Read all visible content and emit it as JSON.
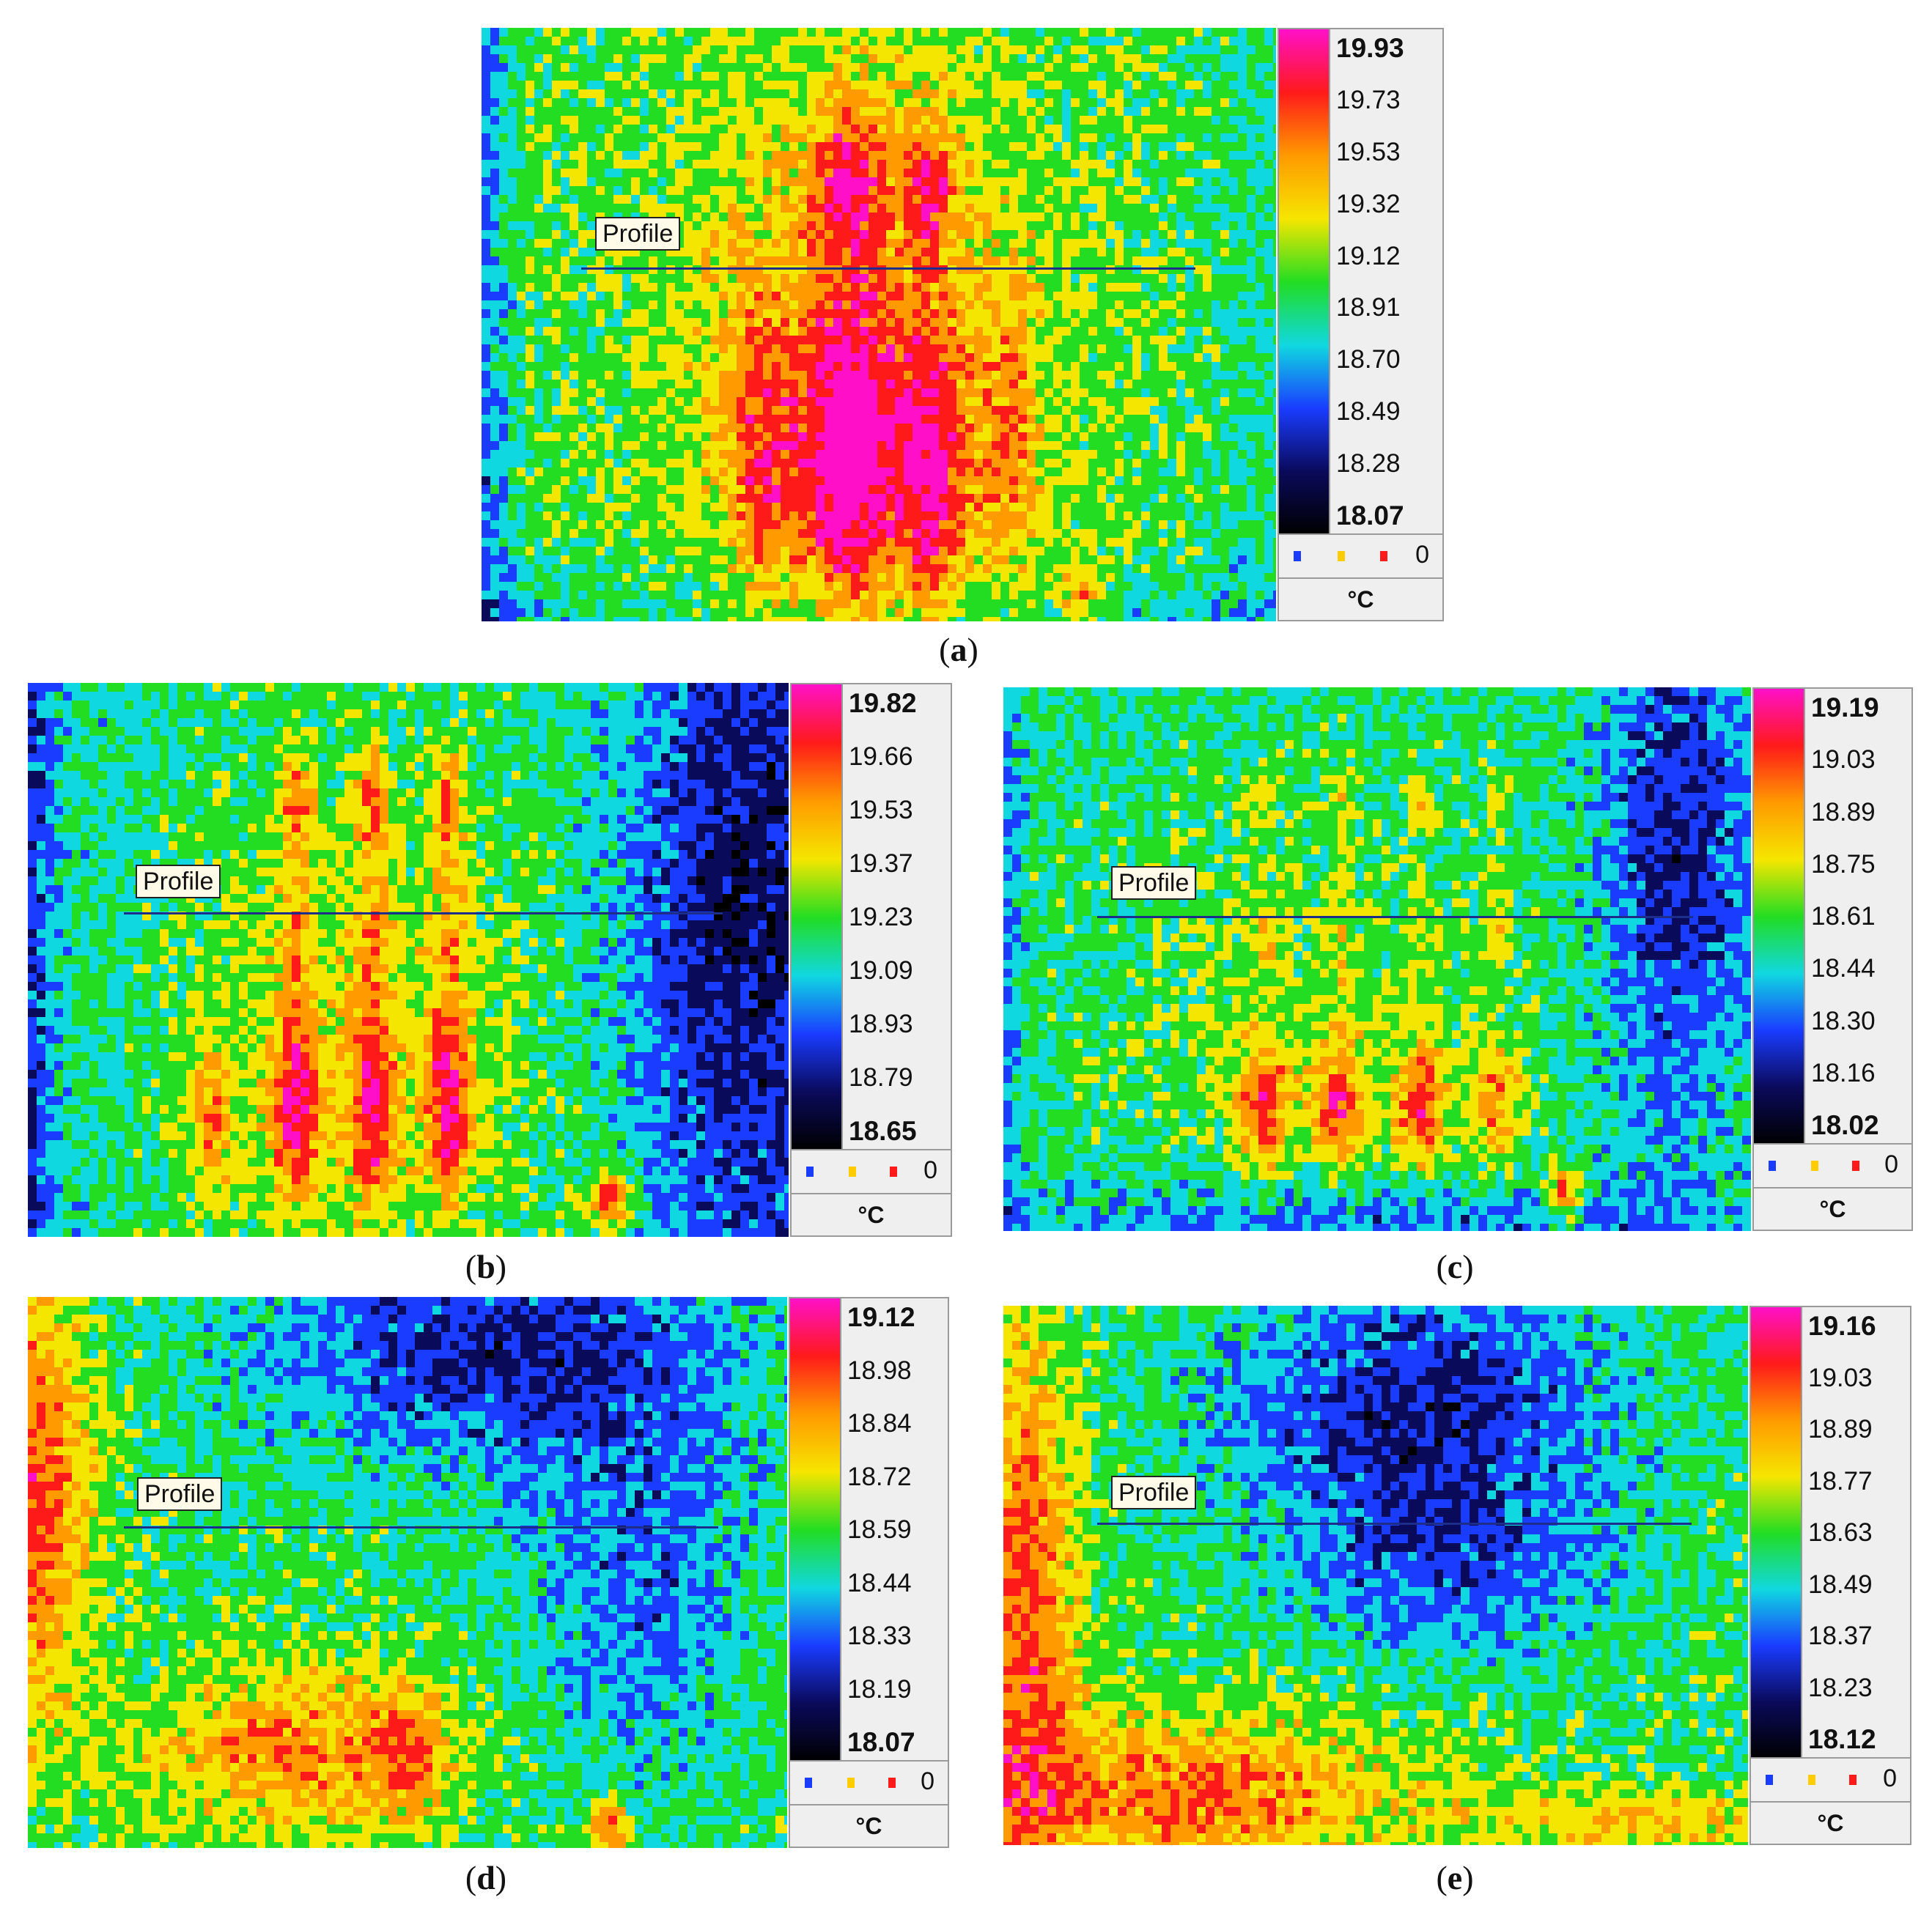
{
  "panels": [
    {
      "letter": "a",
      "profile_label": "Profile",
      "unit": "°C",
      "legend_count": "0",
      "scale": [
        "19.93",
        "19.73",
        "19.53",
        "19.32",
        "19.12",
        "18.91",
        "18.70",
        "18.49",
        "18.28",
        "18.07"
      ]
    },
    {
      "letter": "b",
      "profile_label": "Profile",
      "unit": "°C",
      "legend_count": "0",
      "scale": [
        "19.82",
        "19.66",
        "19.53",
        "19.37",
        "19.23",
        "19.09",
        "18.93",
        "18.79",
        "18.65"
      ]
    },
    {
      "letter": "c",
      "profile_label": "Profile",
      "unit": "°C",
      "legend_count": "0",
      "scale": [
        "19.19",
        "19.03",
        "18.89",
        "18.75",
        "18.61",
        "18.44",
        "18.30",
        "18.16",
        "18.02"
      ]
    },
    {
      "letter": "d",
      "profile_label": "Profile",
      "unit": "°C",
      "legend_count": "0",
      "scale": [
        "19.12",
        "18.98",
        "18.84",
        "18.72",
        "18.59",
        "18.44",
        "18.33",
        "18.19",
        "18.07"
      ]
    },
    {
      "letter": "e",
      "profile_label": "Profile",
      "unit": "°C",
      "legend_count": "0",
      "scale": [
        "19.16",
        "19.03",
        "18.89",
        "18.77",
        "18.63",
        "18.49",
        "18.37",
        "18.23",
        "18.12"
      ]
    }
  ],
  "colors": {
    "magenta": "#ff10c8",
    "red": "#ff1a1a",
    "orange": "#ff9a00",
    "yellow": "#f5e600",
    "green": "#22dd22",
    "cyan": "#10d8e0",
    "blue": "#1a3cff",
    "navy": "#0a0a5a",
    "black": "#000000",
    "legend_blue": "#1a3cff",
    "legend_yellow": "#ffcc00",
    "legend_red": "#ff1a1a"
  }
}
